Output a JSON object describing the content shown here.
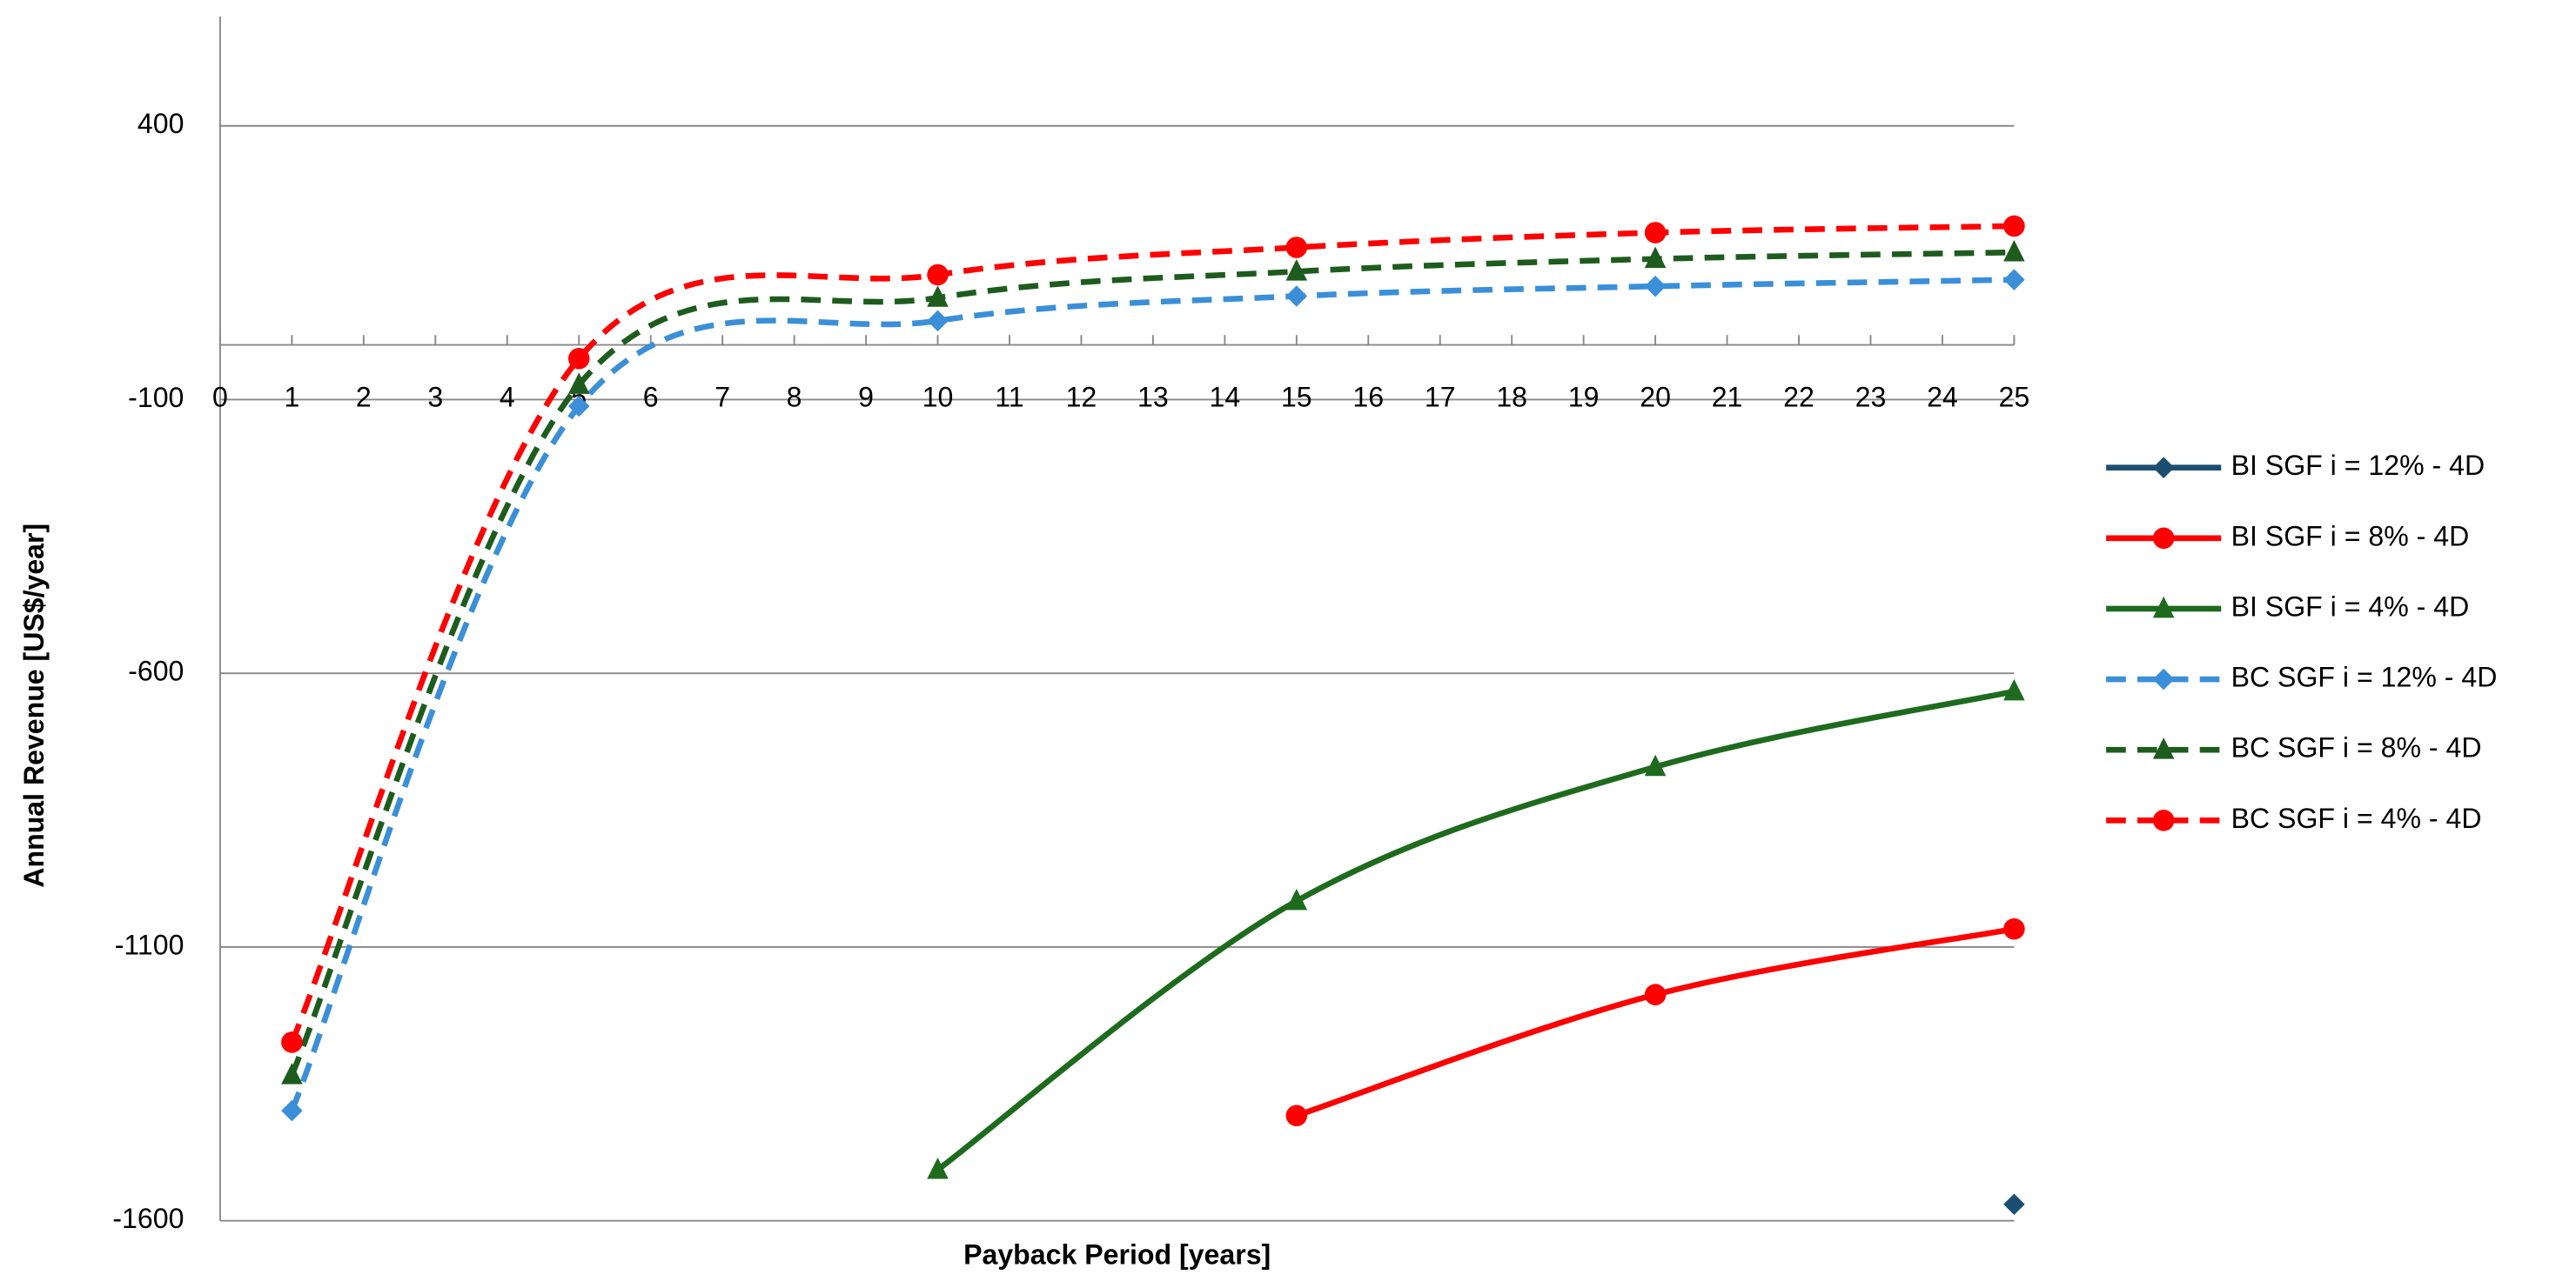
{
  "chart_data": {
    "type": "line",
    "x_label": "Payback Period [years]",
    "y_label": "Annual Revenue [US$/year]",
    "x": [
      1,
      5,
      10,
      15,
      20,
      25
    ],
    "xlim": [
      0,
      25
    ],
    "xticks": [
      0,
      1,
      2,
      3,
      4,
      5,
      6,
      7,
      8,
      9,
      10,
      11,
      12,
      13,
      14,
      15,
      16,
      17,
      18,
      19,
      20,
      21,
      22,
      23,
      24,
      25
    ],
    "ylim": [
      -1600,
      600
    ],
    "yticks": [
      -1600,
      -1100,
      -600,
      -100,
      400
    ],
    "grid": true,
    "legend": "right",
    "series": [
      {
        "name": "BI SGF i = 12% - 4D",
        "color": "#1b4f72",
        "marker": "diamond",
        "dashed": false,
        "values": [
          null,
          null,
          null,
          null,
          null,
          -1570
        ]
      },
      {
        "name": "BI SGF i = 8% - 4D",
        "color": "#ff0000",
        "marker": "circle",
        "dashed": false,
        "values": [
          null,
          null,
          null,
          -1408,
          -1187,
          -1067
        ]
      },
      {
        "name": "BI SGF i = 4% - 4D",
        "color": "#1e6b1e",
        "marker": "triangle",
        "dashed": false,
        "values": [
          null,
          null,
          -1507,
          -1016,
          -771,
          -633
        ]
      },
      {
        "name": "BC SGF i = 12% - 4D",
        "color": "#3a8fd8",
        "marker": "diamond",
        "dashed": true,
        "values": [
          -1399,
          -112,
          44,
          89,
          107,
          119
        ]
      },
      {
        "name": "BC SGF i = 8% - 4D",
        "color": "#1e5c1e",
        "marker": "triangle",
        "dashed": true,
        "values": [
          -1334,
          -73,
          86,
          134,
          157,
          169
        ]
      },
      {
        "name": "BC SGF i = 4% - 4D",
        "color": "#ff0000",
        "marker": "circle",
        "dashed": true,
        "values": [
          -1274,
          -25,
          128,
          178,
          205,
          217
        ]
      }
    ]
  }
}
